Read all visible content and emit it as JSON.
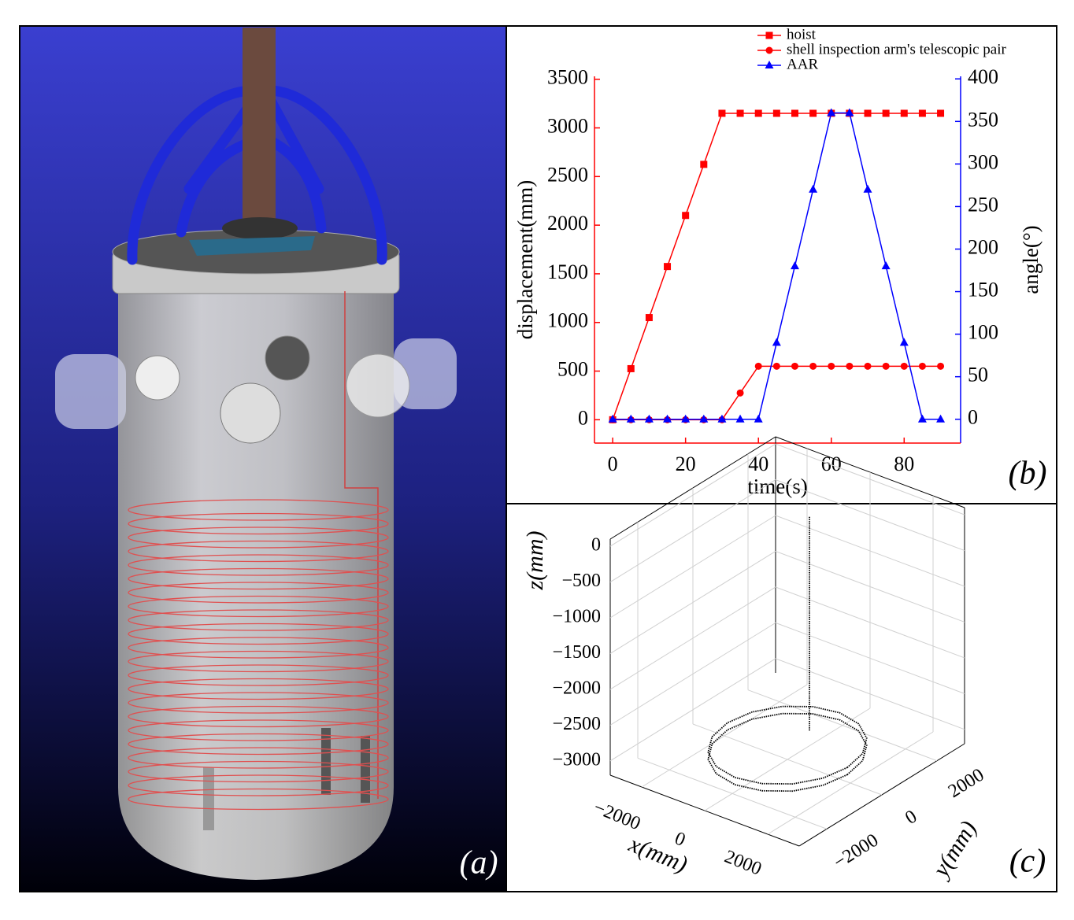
{
  "panel_labels": [
    "(a)",
    "(b)",
    "(c)"
  ],
  "chart_data": [
    {
      "type": "line",
      "x_label": "time(s)",
      "y_label": "displacement(mm)",
      "y2_label": "angle(°)",
      "x": [
        0,
        5,
        10,
        15,
        20,
        25,
        30,
        35,
        40,
        45,
        50,
        55,
        60,
        65,
        70,
        75,
        80,
        85,
        90
      ],
      "xlim": [
        -5,
        95.5
      ],
      "xticks": [
        0,
        20,
        40,
        60,
        80
      ],
      "ylim": [
        -240,
        3530
      ],
      "yticks": [
        0,
        500,
        1000,
        1500,
        2000,
        2500,
        3000,
        3500
      ],
      "y2lim": [
        -28,
        403
      ],
      "y2ticks": [
        0,
        50,
        100,
        150,
        200,
        250,
        300,
        350,
        400
      ],
      "y_color": "#ff0000",
      "y2_color": "#0000ff",
      "legend": "top",
      "series": [
        {
          "name": "hoist",
          "color": "#ff0000",
          "marker": "square",
          "values": [
            0,
            525,
            1050,
            1575,
            2100,
            2625,
            3150,
            3150,
            3150,
            3150,
            3150,
            3150,
            3150,
            3150,
            3150,
            3150,
            3150,
            3150,
            3150
          ]
        },
        {
          "name": "shell inspection arm's telescopic pair",
          "color": "#ff0000",
          "marker": "circle",
          "values": [
            0,
            0,
            0,
            0,
            0,
            0,
            0,
            275,
            550,
            550,
            550,
            550,
            550,
            550,
            550,
            550,
            550,
            550,
            550
          ]
        },
        {
          "name": "AAR",
          "color": "#0000ff",
          "marker": "triangle",
          "axis": "y2",
          "values": [
            0,
            0,
            0,
            0,
            0,
            0,
            0,
            0,
            0,
            90,
            180,
            270,
            360,
            360,
            270,
            180,
            90,
            0,
            0
          ]
        }
      ]
    },
    {
      "type": "line3d",
      "x_label": "x(mm)",
      "y_label": "y(mm)",
      "z_label": "z(mm)",
      "grid": true,
      "xlim": [
        -3000,
        3000
      ],
      "ylim": [
        -3000,
        3000
      ],
      "zlim": [
        -3200,
        100
      ],
      "xticks": [
        {
          "value": -2000,
          "label": "−2000"
        },
        0,
        2000
      ],
      "yticks": [
        {
          "value": -2000,
          "label": "−2000"
        },
        0,
        2000
      ],
      "zticks": [
        0,
        {
          "value": -500,
          "label": "−500"
        },
        {
          "value": -1000,
          "label": "−1000"
        },
        {
          "value": -1500,
          "label": "−1500"
        },
        {
          "value": -2000,
          "label": "−2000"
        },
        {
          "value": -2500,
          "label": "−2500"
        },
        {
          "value": -3000,
          "label": "−3000"
        }
      ],
      "series": [
        {
          "color": "#000000",
          "x": [
            0,
            0,
            null,
            1900,
            1755,
            1343,
            727,
            0,
            -727,
            -1343,
            -1755,
            -1900,
            -1755,
            -1343,
            -727,
            0,
            727,
            1343,
            1755,
            1900,
            null,
            1900,
            1755,
            1343,
            727,
            0,
            -727,
            -1343,
            -1755,
            -1900,
            -1755,
            -1343,
            -727,
            0,
            727,
            1343,
            1755,
            1900
          ],
          "y": [
            800,
            800,
            null,
            0,
            727,
            1343,
            1755,
            1900,
            1755,
            1343,
            727,
            0,
            -727,
            -1343,
            -1755,
            -1900,
            -1755,
            -1343,
            -727,
            0,
            null,
            0,
            727,
            1343,
            1755,
            1900,
            1755,
            1343,
            727,
            0,
            -727,
            -1343,
            -1755,
            -1900,
            -1755,
            -1343,
            -727,
            0
          ],
          "z": [
            0,
            -3000,
            null,
            -3000,
            -3000,
            -3000,
            -3000,
            -3000,
            -3000,
            -3000,
            -3000,
            -3000,
            -3000,
            -3000,
            -3000,
            -3000,
            -3000,
            -3000,
            -3000,
            -3000,
            null,
            -3100,
            -3100,
            -3100,
            -3100,
            -3100,
            -3100,
            -3100,
            -3100,
            -3100,
            -3100,
            -3100,
            -3100,
            -3100,
            -3100,
            -3100,
            -3100,
            -3100
          ]
        }
      ]
    }
  ]
}
